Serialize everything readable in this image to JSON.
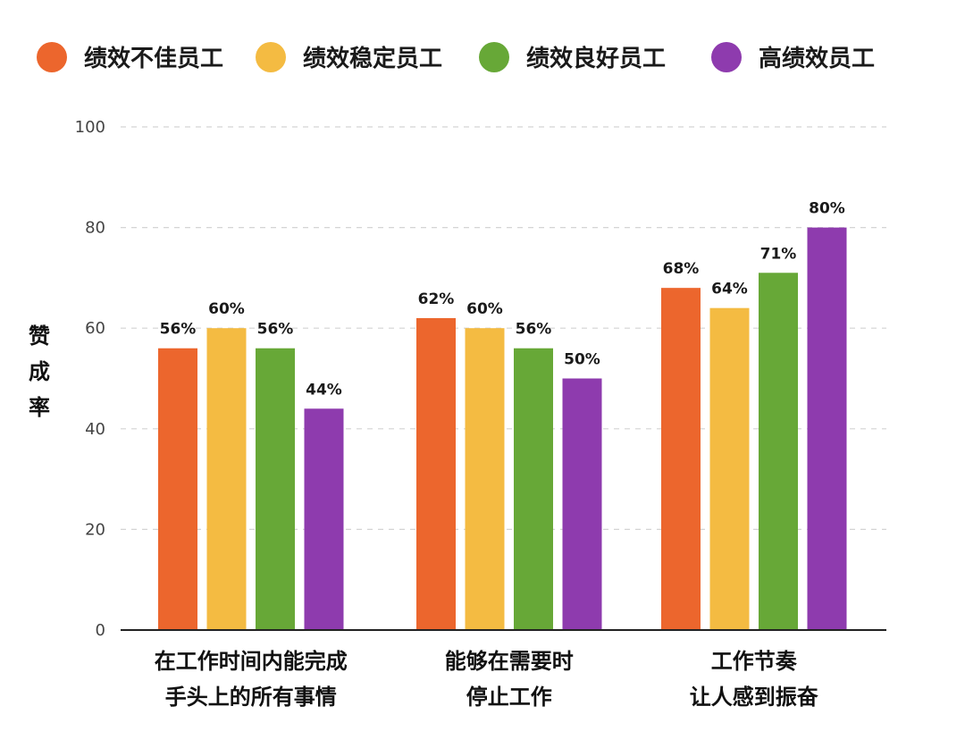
{
  "chart_data": {
    "type": "bar",
    "title": "",
    "xlabel": "",
    "ylabel": "赞成率",
    "ylim": [
      0,
      100
    ],
    "yticks": [
      0,
      20,
      40,
      60,
      80,
      100
    ],
    "grid": true,
    "legend_position": "top",
    "categories": [
      [
        "在工作时间内能完成",
        "手头上的所有事情"
      ],
      [
        "能够在需要时",
        "停止工作"
      ],
      [
        "工作节奏",
        "让人感到振奋"
      ]
    ],
    "series": [
      {
        "name": "绩效不佳员工",
        "color": "#EC662D",
        "values": [
          56,
          62,
          68
        ],
        "labels": [
          "56%",
          "62%",
          "68%"
        ]
      },
      {
        "name": "绩效稳定员工",
        "color": "#F4BB42",
        "values": [
          60,
          60,
          64
        ],
        "labels": [
          "60%",
          "60%",
          "64%"
        ]
      },
      {
        "name": "绩效良好员工",
        "color": "#67A837",
        "values": [
          56,
          56,
          71
        ],
        "labels": [
          "56%",
          "56%",
          "71%"
        ]
      },
      {
        "name": "高绩效员工",
        "color": "#8E3BAE",
        "values": [
          44,
          50,
          80
        ],
        "labels": [
          "44%",
          "50%",
          "80%"
        ]
      }
    ]
  }
}
